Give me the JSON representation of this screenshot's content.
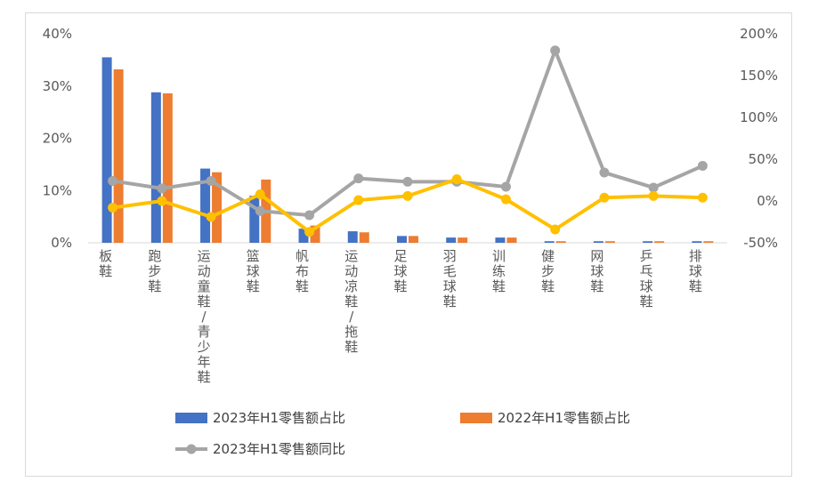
{
  "chart_data": {
    "type": "bar",
    "categories": [
      "板鞋",
      "跑步鞋",
      "运动童鞋/青少年鞋",
      "篮球鞋",
      "帆布鞋",
      "运动凉鞋/拖鞋",
      "足球鞋",
      "羽毛球鞋",
      "训练鞋",
      "健步鞋",
      "网球鞋",
      "乒乓球鞋",
      "排球鞋"
    ],
    "y_left": {
      "ticks": [
        "0%",
        "10%",
        "20%",
        "30%",
        "40%"
      ],
      "range": [
        0,
        40
      ]
    },
    "y_right": {
      "ticks": [
        "-50%",
        "0%",
        "50%",
        "100%",
        "150%",
        "200%"
      ],
      "range": [
        -50,
        200
      ]
    },
    "series": [
      {
        "name": "2023年H1零售额占比",
        "kind": "bar",
        "axis": "left",
        "color": "#4472C4",
        "values": [
          35.5,
          28.8,
          14.2,
          9.0,
          2.7,
          2.2,
          1.3,
          1.0,
          1.0,
          0.3,
          0.3,
          0.3,
          0.3
        ]
      },
      {
        "name": "2022年H1零售额占比",
        "kind": "bar",
        "axis": "left",
        "color": "#ED7D31",
        "values": [
          33.2,
          28.6,
          13.5,
          12.1,
          3.3,
          2.0,
          1.3,
          1.0,
          1.0,
          0.3,
          0.3,
          0.3,
          0.3
        ]
      },
      {
        "name": "2023年H1零售额同比",
        "kind": "line",
        "axis": "right",
        "color": "#A5A5A5",
        "values": [
          24,
          15,
          24,
          -12,
          -17,
          27,
          23,
          23,
          17,
          180,
          34,
          16,
          42
        ]
      },
      {
        "name": "",
        "kind": "line",
        "axis": "right",
        "color": "#FFC000",
        "values": [
          -8,
          0,
          -19,
          8,
          -37,
          1,
          6,
          26,
          2,
          -34,
          4,
          6,
          4
        ]
      }
    ],
    "grid": false,
    "legend": "bottom"
  }
}
